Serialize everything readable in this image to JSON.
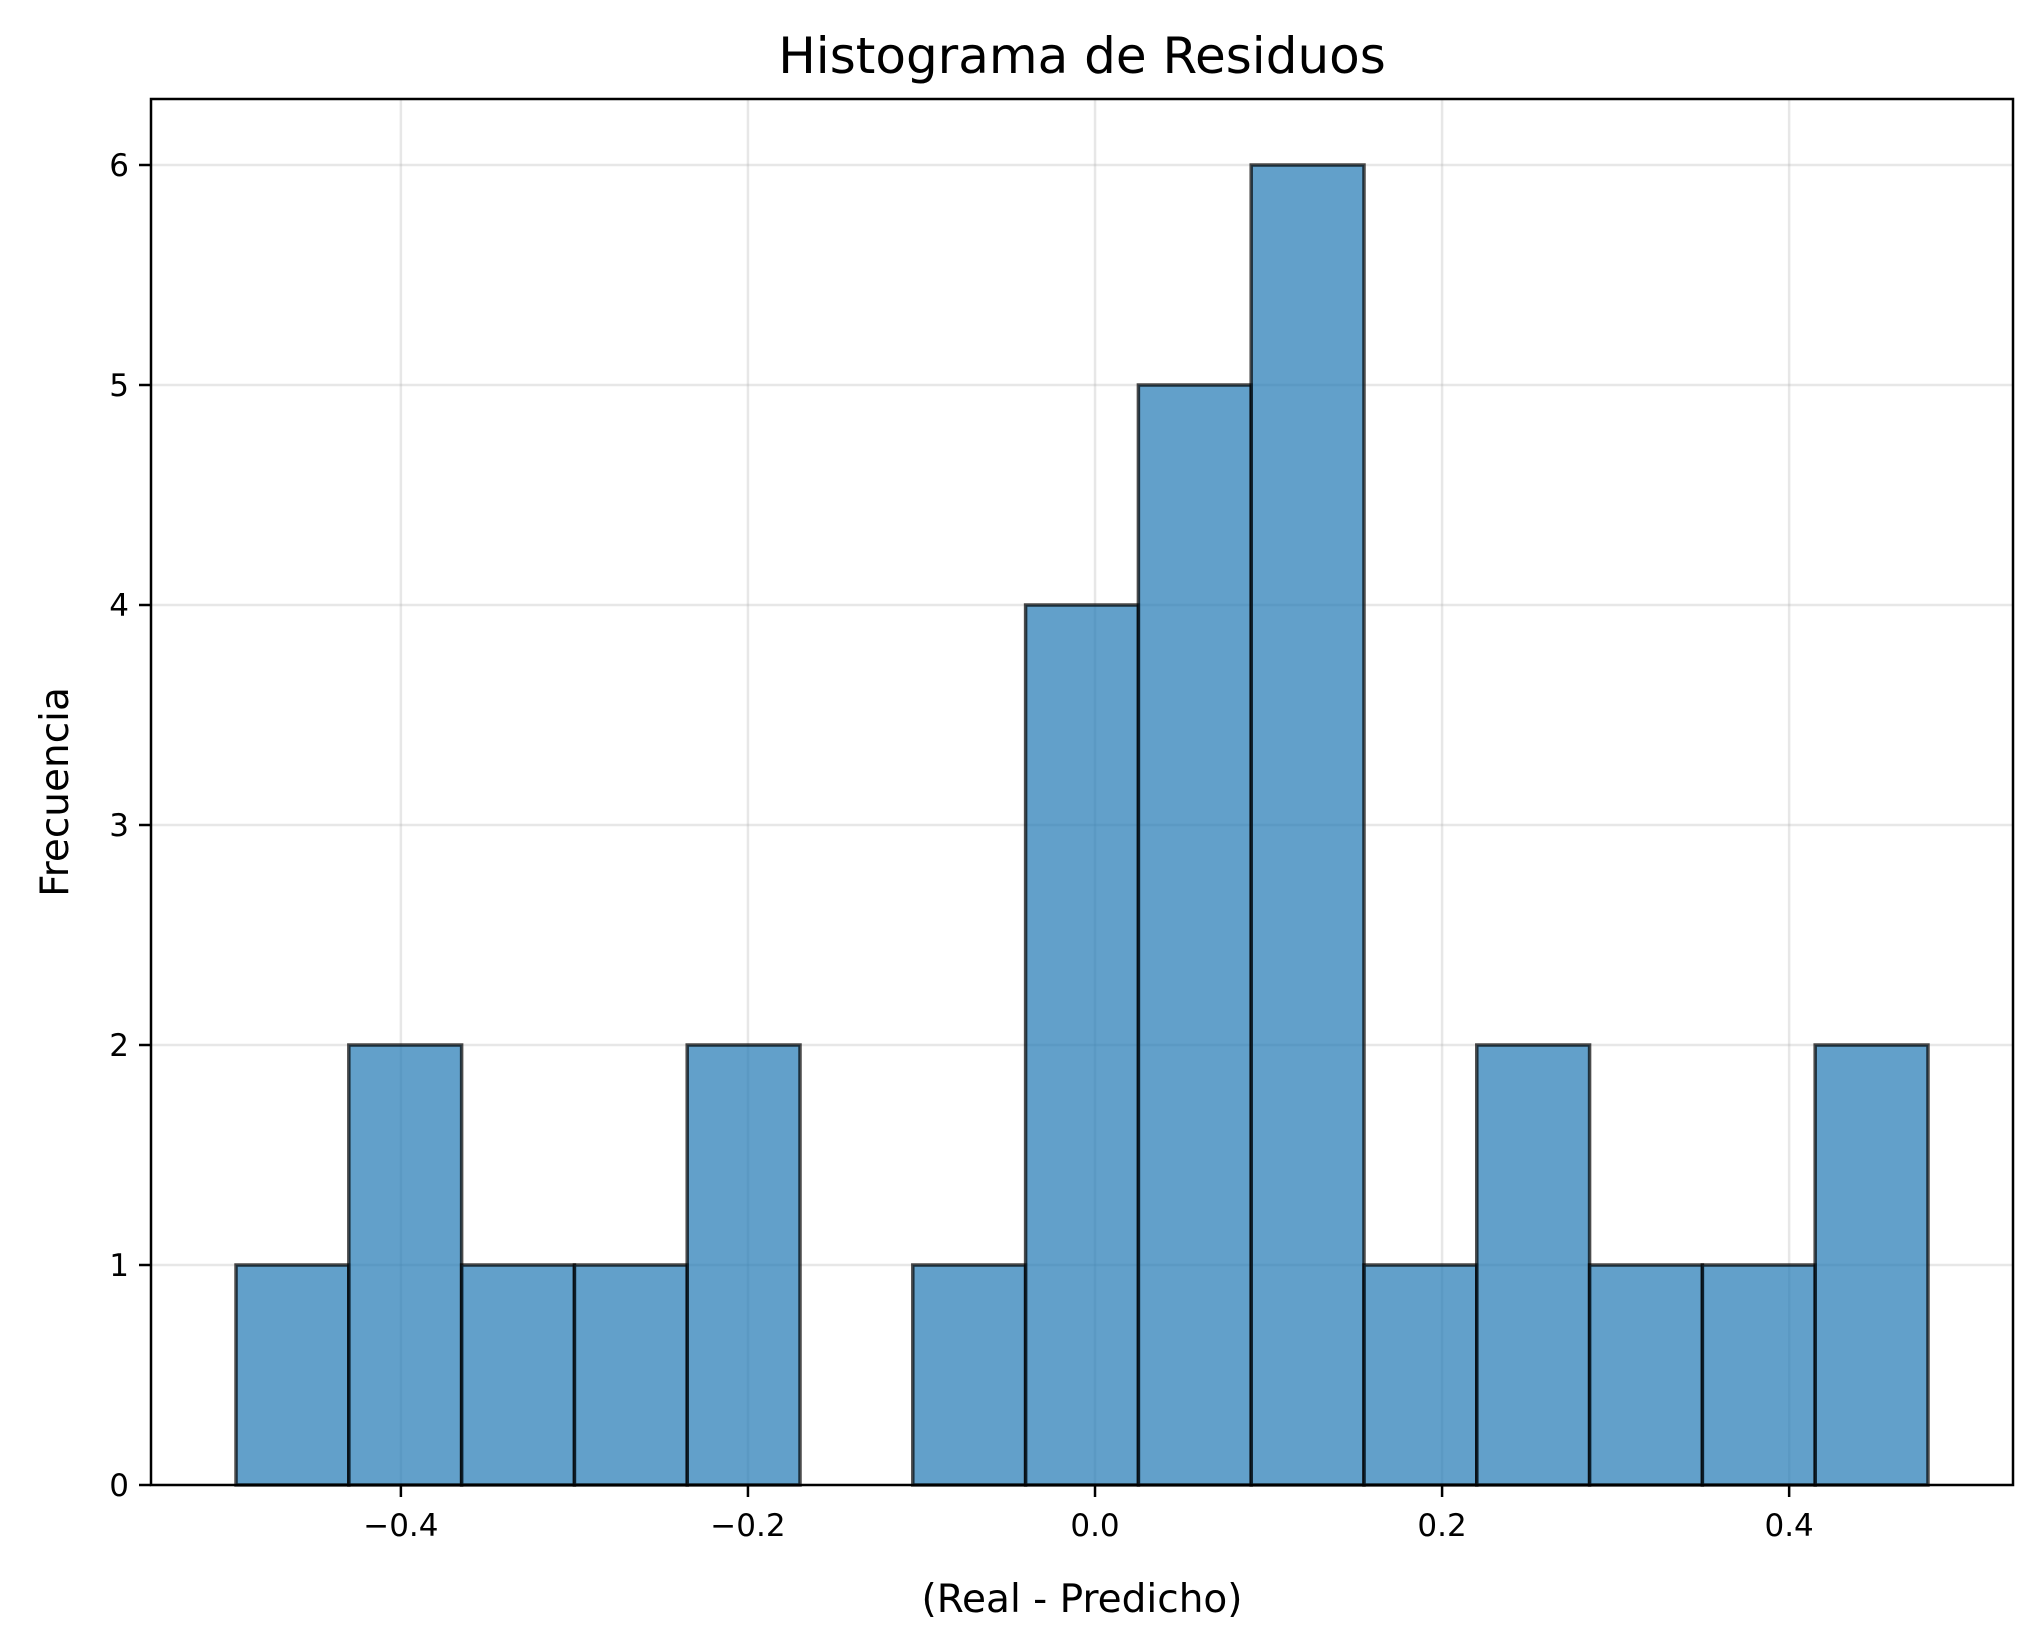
{
  "chart_data": {
    "type": "histogram",
    "title": "Histograma de Residuos",
    "xlabel": "(Real - Predicho)",
    "ylabel": "Frecuencia",
    "bin_edges": [
      -0.495,
      -0.43,
      -0.365,
      -0.3,
      -0.235,
      -0.17,
      -0.105,
      -0.04,
      0.025,
      0.09,
      0.155,
      0.22,
      0.285,
      0.35,
      0.415,
      0.48
    ],
    "counts": [
      1,
      2,
      1,
      1,
      2,
      0,
      1,
      4,
      5,
      6,
      1,
      2,
      1,
      1,
      2
    ],
    "xlim": [
      -0.544,
      0.529
    ],
    "ylim": [
      0,
      6.3
    ],
    "xticks": [
      -0.4,
      -0.2,
      0.0,
      0.2,
      0.4
    ],
    "xtick_labels": [
      "−0.4",
      "−0.2",
      "0.0",
      "0.2",
      "0.4"
    ],
    "yticks": [
      0,
      1,
      2,
      3,
      4,
      5,
      6
    ],
    "ytick_labels": [
      "0",
      "1",
      "2",
      "3",
      "4",
      "5",
      "6"
    ],
    "grid": true,
    "bar_color": "#1f77b4",
    "edge_color": "#000000"
  }
}
